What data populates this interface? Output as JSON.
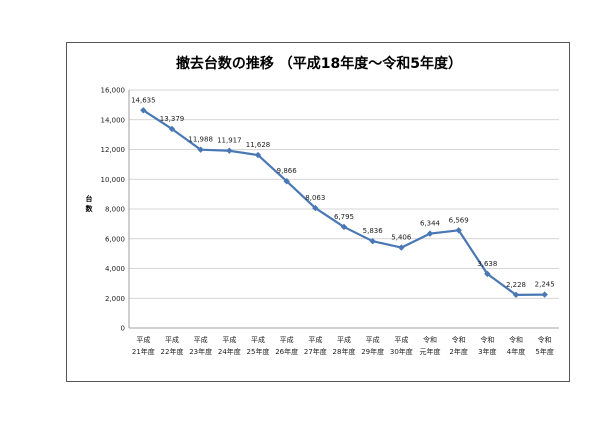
{
  "chart_data": {
    "type": "line",
    "title": "撤去台数の推移 （平成18年度～令和5年度）",
    "xlabel": "",
    "ylabel": "台数",
    "ylim": [
      0,
      16000
    ],
    "yticks": [
      0,
      2000,
      4000,
      6000,
      8000,
      10000,
      12000,
      14000,
      16000
    ],
    "ytick_labels": [
      "0",
      "2,000",
      "4,000",
      "6,000",
      "8,000",
      "10,000",
      "12,000",
      "14,000",
      "16,000"
    ],
    "categories": [
      {
        "line1": "平成",
        "line2": "21年度"
      },
      {
        "line1": "平成",
        "line2": "22年度"
      },
      {
        "line1": "平成",
        "line2": "23年度"
      },
      {
        "line1": "平成",
        "line2": "24年度"
      },
      {
        "line1": "平成",
        "line2": "25年度"
      },
      {
        "line1": "平成",
        "line2": "26年度"
      },
      {
        "line1": "平成",
        "line2": "27年度"
      },
      {
        "line1": "平成",
        "line2": "28年度"
      },
      {
        "line1": "平成",
        "line2": "29年度"
      },
      {
        "line1": "平成",
        "line2": "30年度"
      },
      {
        "line1": "令和",
        "line2": "元年度"
      },
      {
        "line1": "令和",
        "line2": "2年度"
      },
      {
        "line1": "令和",
        "line2": "3年度"
      },
      {
        "line1": "令和",
        "line2": "4年度"
      },
      {
        "line1": "令和",
        "line2": "5年度"
      }
    ],
    "series": [
      {
        "name": "撤去台数",
        "color": "#4a78b5",
        "values": [
          14635,
          13379,
          11988,
          11917,
          11628,
          9866,
          8063,
          6795,
          5836,
          5406,
          6344,
          6569,
          3638,
          2228,
          2245
        ],
        "labels": [
          "14,635",
          "13,379",
          "11,988",
          "11,917",
          "11,628",
          "9,866",
          "8,063",
          "6,795",
          "5,836",
          "5,406",
          "6,344",
          "6,569",
          "3,638",
          "2,228",
          "2,245"
        ]
      }
    ],
    "grid": true,
    "legend": "none"
  }
}
